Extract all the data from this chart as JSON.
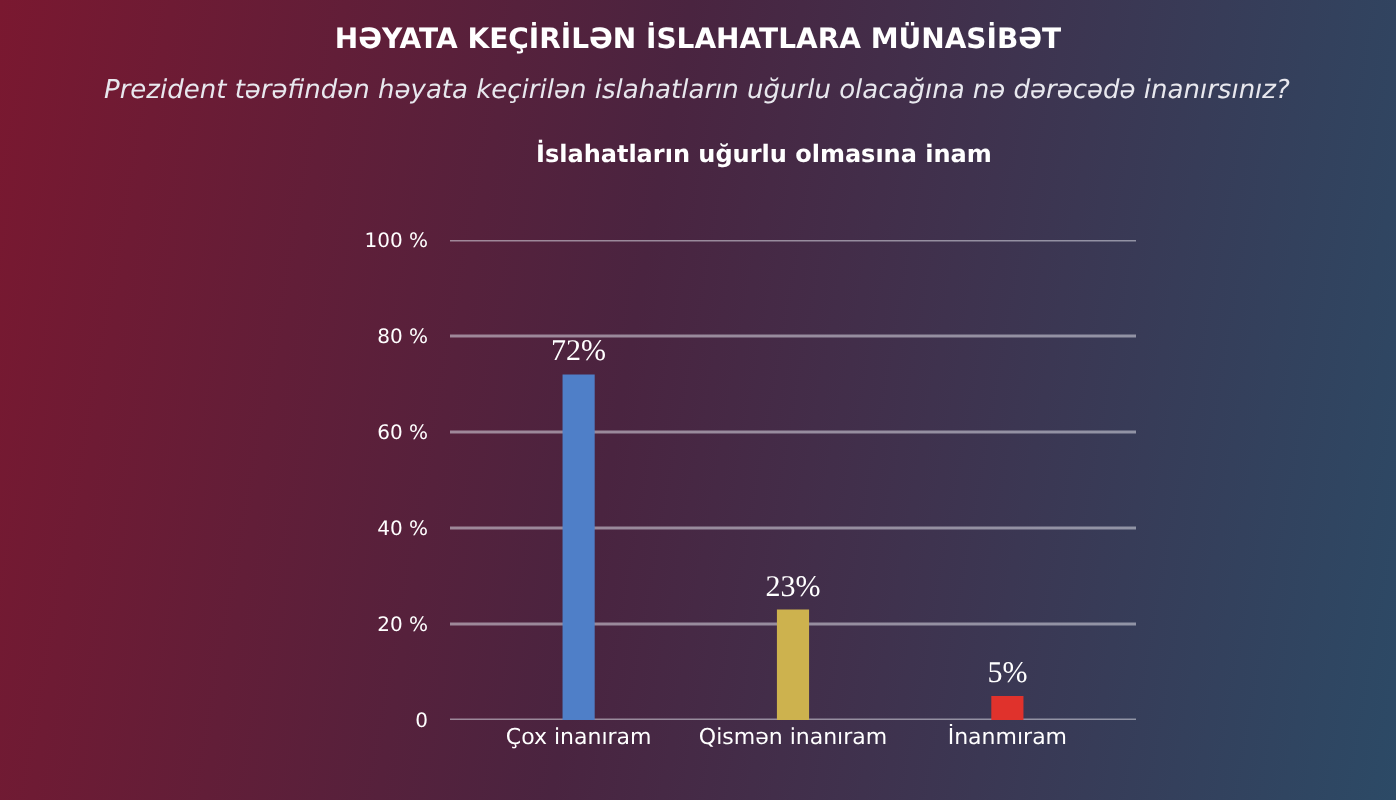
{
  "chart_data": {
    "type": "bar",
    "title": "HƏYATA KEÇİRİLƏN İSLAHATLARA MÜNASİBƏT",
    "subtitle": "Prezident tərəfindən həyata keçirilən islahatların uğurlu olacağına nə dərəcədə inanırsınız?",
    "annotations": [
      "İslahatların uğurlu olmasına inam"
    ],
    "categories": [
      "Çox inanıram",
      "Qismən inanıram",
      "İnanmıram"
    ],
    "values": [
      72,
      23,
      5
    ],
    "colors": [
      "#4f7fc8",
      "#cdb24e",
      "#e0322c"
    ],
    "value_labels": [
      "72%",
      "23%",
      "5%"
    ],
    "ylim": [
      0,
      100
    ],
    "yticks": [
      {
        "value": 0,
        "label": "0"
      },
      {
        "value": 20,
        "label": "20 %"
      },
      {
        "value": 40,
        "label": "40 %"
      },
      {
        "value": 60,
        "label": "60 %"
      },
      {
        "value": 80,
        "label": "80 %"
      },
      {
        "value": 100,
        "label": "100 %"
      }
    ],
    "grid": "y",
    "legend": false
  }
}
